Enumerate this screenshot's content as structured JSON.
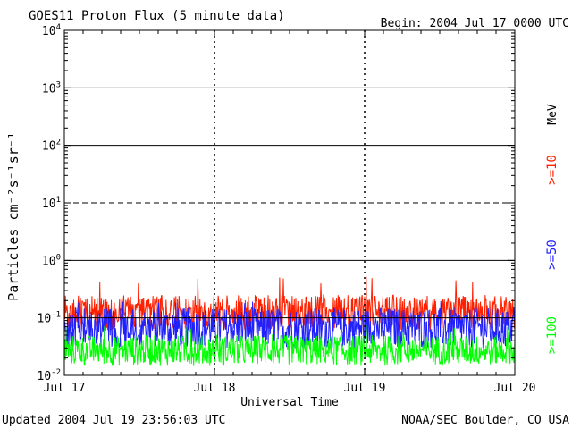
{
  "chart_data": {
    "type": "line",
    "title": "GOES11 Proton Flux (5 minute data)",
    "begin_label": "Begin: 2004 Jul 17 0000 UTC",
    "xlabel": "Universal Time",
    "ylabel": "Particles cm⁻²s⁻¹sr⁻¹",
    "y_scale": "log",
    "ylim": [
      0.01,
      10000
    ],
    "y_ticks": [
      {
        "base": "10",
        "exp": "4"
      },
      {
        "base": "10",
        "exp": "3"
      },
      {
        "base": "10",
        "exp": "2"
      },
      {
        "base": "10",
        "exp": "1"
      },
      {
        "base": "10",
        "exp": "0"
      },
      {
        "base": "10",
        "exp": "-1"
      },
      {
        "base": "10",
        "exp": "-2"
      }
    ],
    "x_ticks": [
      "Jul 17",
      "Jul 18",
      "Jul 19",
      "Jul 20"
    ],
    "xlim_days": [
      0,
      3
    ],
    "unit_label": "MeV",
    "series": [
      {
        "name": ">=10",
        "color": "#ff2000",
        "baseline": 0.1,
        "typical_range": [
          0.06,
          0.25
        ],
        "peak": 0.6
      },
      {
        "name": ">=50",
        "color": "#2020ff",
        "baseline": 0.06,
        "typical_range": [
          0.03,
          0.15
        ],
        "peak": 0.2
      },
      {
        "name": ">=100",
        "color": "#00ff00",
        "baseline": 0.025,
        "typical_range": [
          0.015,
          0.05
        ],
        "peak": 0.08
      }
    ],
    "threshold_lines": [
      {
        "value": 10,
        "style": "dashed"
      },
      {
        "value": 0.1,
        "style": "solid"
      }
    ],
    "grid_lines": [
      1000,
      100,
      1
    ],
    "grid": true
  },
  "footer": {
    "updated": "Updated 2004 Jul 19 23:56:03 UTC",
    "source": "NOAA/SEC Boulder, CO USA"
  }
}
